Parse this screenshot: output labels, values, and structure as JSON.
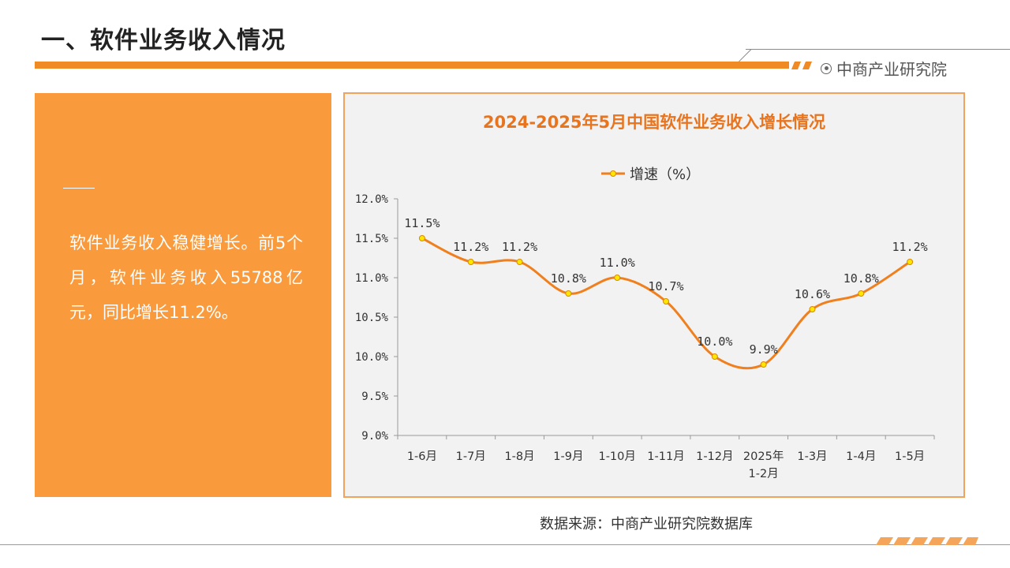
{
  "header": {
    "title": "一、软件业务收入情况",
    "brand": "中商产业研究院"
  },
  "left_panel": {
    "text": "软件业务收入稳健增长。前5个月，软件业务收入55788亿元，同比增长11.2%。"
  },
  "colors": {
    "accent": "#f08a24",
    "panel": "#f99a3c",
    "line": "#f07f1e",
    "marker": "#ffe600",
    "title": "#e8741e"
  },
  "chart_data": {
    "type": "line",
    "title": "2024-2025年5月中国软件业务收入增长情况",
    "xlabel": "",
    "ylabel": "",
    "categories": [
      "1-6月",
      "1-7月",
      "1-8月",
      "1-9月",
      "1-10月",
      "1-11月",
      "1-12月",
      "2025年\n1-2月",
      "1-3月",
      "1-4月",
      "1-5月"
    ],
    "series": [
      {
        "name": "增速（%）",
        "values": [
          11.5,
          11.2,
          11.2,
          10.8,
          11.0,
          10.7,
          10.0,
          9.9,
          10.6,
          10.8,
          11.2
        ],
        "labels": [
          "11.5%",
          "11.2%",
          "11.2%",
          "10.8%",
          "11.0%",
          "10.7%",
          "10.0%",
          "9.9%",
          "10.6%",
          "10.8%",
          "11.2%"
        ]
      }
    ],
    "ylim": [
      9.0,
      12.0
    ],
    "yticks": [
      "9.0%",
      "9.5%",
      "10.0%",
      "10.5%",
      "11.0%",
      "11.5%",
      "12.0%"
    ],
    "ytick_values": [
      9.0,
      9.5,
      10.0,
      10.5,
      11.0,
      11.5,
      12.0
    ],
    "grid": false,
    "legend": "top-center",
    "smooth": true
  },
  "footer": {
    "source": "数据来源：中商产业研究院数据库"
  }
}
